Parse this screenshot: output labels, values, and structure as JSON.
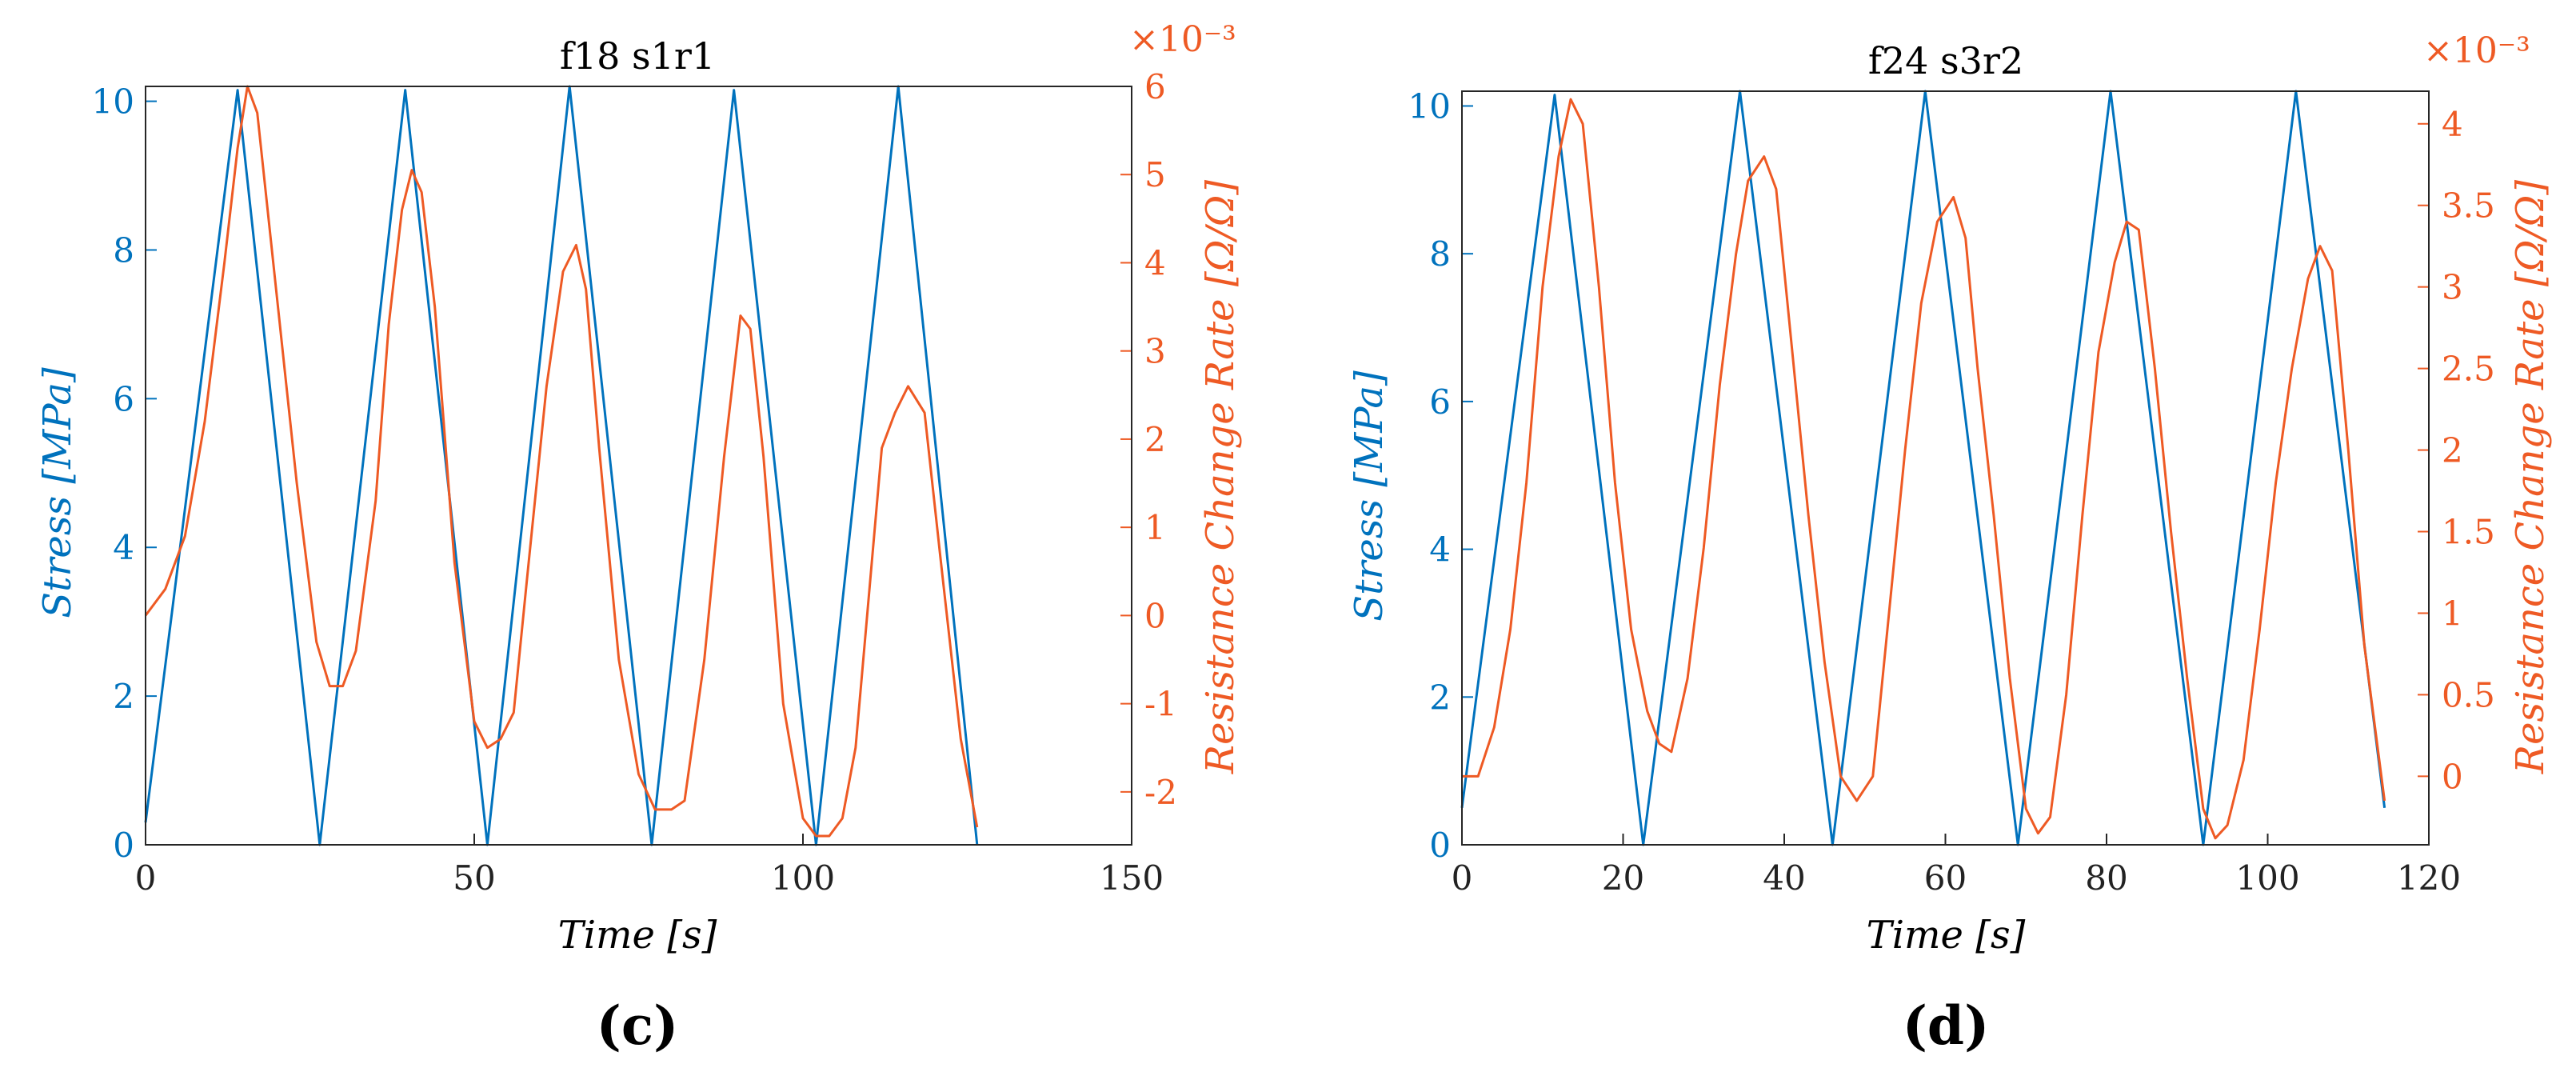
{
  "colors": {
    "stress": "#0072BD",
    "resistance": "#EE5A24",
    "axis": "#262626"
  },
  "chart_data": [
    {
      "type": "line",
      "panel_label": "(c)",
      "title": "f18 s1r1",
      "xlabel": "Time [s]",
      "ylabel_left": "Stress [MPa]",
      "ylabel_right": "Resistance Change Rate [Ω/Ω]",
      "right_multiplier": "×10⁻³",
      "xlim": [
        0,
        150
      ],
      "ylim_left": [
        0,
        10.2
      ],
      "ylim_right": [
        -2.6,
        6
      ],
      "xticks": [
        "0",
        "50",
        "100",
        "150"
      ],
      "yticks_left": [
        "0",
        "2",
        "4",
        "6",
        "8",
        "10"
      ],
      "yticks_right": [
        "-2",
        "-1",
        "0",
        "1",
        "2",
        "3",
        "4",
        "5",
        "6"
      ],
      "grid": false,
      "series": [
        {
          "name": "Stress",
          "axis": "left",
          "x": [
            0,
            14,
            26.5,
            39.5,
            52,
            64.5,
            77,
            89.5,
            102,
            114.5,
            126.5
          ],
          "y": [
            0.3,
            10.15,
            0,
            10.15,
            0,
            10.2,
            0,
            10.15,
            0,
            10.2,
            0
          ]
        },
        {
          "name": "Resistance Change Rate",
          "axis": "right",
          "x": [
            0,
            3,
            6,
            9,
            12,
            14,
            15.5,
            17,
            20,
            23,
            26,
            28,
            30,
            32,
            35,
            37,
            39,
            40.5,
            42,
            44,
            47,
            50,
            52,
            54,
            56,
            58,
            61,
            63.5,
            65.5,
            67,
            69,
            72,
            75,
            77.5,
            80,
            82,
            85,
            88,
            90.5,
            92,
            94,
            97,
            100,
            102,
            104,
            106,
            108,
            110,
            112,
            114,
            116,
            118.5,
            121,
            124,
            126.5
          ],
          "y": [
            0,
            0.3,
            0.9,
            2.2,
            4.0,
            5.3,
            6.0,
            5.7,
            3.6,
            1.5,
            -0.3,
            -0.8,
            -0.8,
            -0.4,
            1.3,
            3.3,
            4.6,
            5.05,
            4.8,
            3.5,
            0.6,
            -1.2,
            -1.5,
            -1.4,
            -1.1,
            0.4,
            2.6,
            3.9,
            4.2,
            3.7,
            1.9,
            -0.5,
            -1.8,
            -2.2,
            -2.2,
            -2.1,
            -0.5,
            1.8,
            3.4,
            3.25,
            1.8,
            -1.0,
            -2.3,
            -2.5,
            -2.5,
            -2.3,
            -1.5,
            0.2,
            1.9,
            2.3,
            2.6,
            2.3,
            0.6,
            -1.4,
            -2.4
          ]
        }
      ]
    },
    {
      "type": "line",
      "panel_label": "(d)",
      "title": "f24 s3r2",
      "xlabel": "Time [s]",
      "ylabel_left": "Stress [MPa]",
      "ylabel_right": "Resistance Change Rate [Ω/Ω]",
      "right_multiplier": "×10⁻³",
      "xlim": [
        0,
        120
      ],
      "ylim_left": [
        0,
        10.2
      ],
      "ylim_right": [
        -0.42,
        4.2
      ],
      "xticks": [
        "0",
        "20",
        "40",
        "60",
        "80",
        "100",
        "120"
      ],
      "yticks_left": [
        "0",
        "2",
        "4",
        "6",
        "8",
        "10"
      ],
      "yticks_right": [
        "0",
        "0.5",
        "1",
        "1.5",
        "2",
        "2.5",
        "3",
        "3.5",
        "4"
      ],
      "grid": false,
      "series": [
        {
          "name": "Stress",
          "axis": "left",
          "x": [
            0,
            11.5,
            22.5,
            34.5,
            46,
            57.5,
            69,
            80.5,
            92,
            103.5,
            114.5
          ],
          "y": [
            0.5,
            10.15,
            0,
            10.2,
            0,
            10.2,
            0,
            10.2,
            0,
            10.2,
            0.5
          ]
        },
        {
          "name": "Resistance Change Rate",
          "axis": "right",
          "x": [
            0,
            2,
            4,
            6,
            8,
            10,
            12,
            13.5,
            15,
            17,
            19,
            21,
            23,
            24.5,
            26,
            28,
            30,
            32,
            34,
            35.5,
            37.5,
            39,
            41,
            43,
            45,
            47,
            49,
            51,
            53,
            55,
            57,
            59,
            61,
            62.5,
            64,
            66,
            68,
            70,
            71.5,
            73,
            75,
            77,
            79,
            81,
            82.5,
            84,
            86,
            88,
            90,
            92,
            93.5,
            95,
            97,
            99,
            101,
            103,
            105,
            106.5,
            108,
            110,
            112,
            114.5
          ],
          "y": [
            0,
            0,
            0.3,
            0.9,
            1.8,
            3.0,
            3.8,
            4.15,
            4.0,
            3.0,
            1.8,
            0.9,
            0.4,
            0.2,
            0.15,
            0.6,
            1.4,
            2.4,
            3.2,
            3.65,
            3.8,
            3.6,
            2.6,
            1.6,
            0.7,
            0.0,
            -0.15,
            0.0,
            1.0,
            2.0,
            2.9,
            3.4,
            3.55,
            3.3,
            2.5,
            1.6,
            0.6,
            -0.2,
            -0.35,
            -0.25,
            0.5,
            1.6,
            2.6,
            3.15,
            3.4,
            3.35,
            2.5,
            1.5,
            0.6,
            -0.2,
            -0.38,
            -0.3,
            0.1,
            0.9,
            1.8,
            2.5,
            3.05,
            3.25,
            3.1,
            2.0,
            0.8,
            -0.15
          ]
        }
      ]
    }
  ]
}
